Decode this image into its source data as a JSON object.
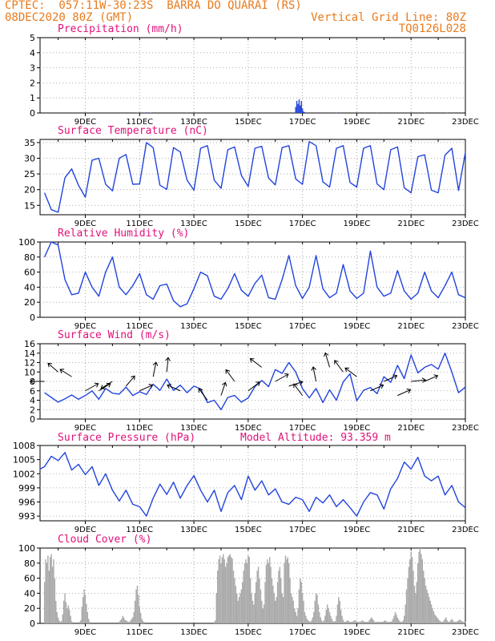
{
  "header": {
    "line1": "CPTEC:  057:11W-30:23S  BARRA DO QUARAI (RS)",
    "line2_left": "08DEC2020 80Z (GMT)",
    "line2_right": "Vertical Grid Line: 80Z",
    "line3_right": "TQ0126L028"
  },
  "x_ticks": [
    "9DEC",
    "11DEC",
    "13DEC",
    "15DEC",
    "17DEC",
    "19DEC",
    "21DEC",
    "23DEC"
  ],
  "x_tick_hours": [
    40,
    88,
    136,
    184,
    232,
    280,
    328,
    376
  ],
  "colors": {
    "line": "#2244dd",
    "wind": "#000000",
    "cloud": "#aaaaaa",
    "grid": "#999999",
    "title": "#e0127a",
    "header": "#e87b1e"
  },
  "chart_data": [
    {
      "type": "bar",
      "id": "precip",
      "title": "Precipitation (mm/h)",
      "ylim": [
        0,
        5
      ],
      "yticks": [
        0,
        1,
        2,
        3,
        4,
        5
      ],
      "x_hours": [
        86,
        92,
        98,
        130,
        226,
        227,
        228,
        229,
        230,
        231,
        232,
        233,
        234,
        262,
        298,
        340,
        360
      ],
      "values": [
        0.02,
        0.03,
        0.02,
        0.03,
        0.4,
        0.8,
        0.6,
        0.9,
        0.5,
        0.8,
        0.3,
        0.1,
        0.05,
        0.02,
        0.03,
        0.02,
        0.03
      ]
    },
    {
      "type": "line",
      "id": "temp",
      "title": "Surface Temperature (nC)",
      "ylim": [
        12,
        36
      ],
      "yticks": [
        15,
        20,
        25,
        30,
        35
      ],
      "x_hours": [
        4,
        10,
        16,
        22,
        28,
        34,
        40,
        46,
        52,
        58,
        64,
        70,
        76,
        82,
        88,
        94,
        100,
        106,
        112,
        118,
        124,
        130,
        136,
        142,
        148,
        154,
        160,
        166,
        172,
        178,
        184,
        190,
        196,
        202,
        208,
        214,
        220,
        226,
        232,
        238,
        244,
        250,
        256,
        262,
        268,
        274,
        280,
        286,
        292,
        298,
        304,
        310,
        316,
        322,
        328,
        334,
        340,
        346,
        352,
        358,
        364,
        370,
        376
      ],
      "values": [
        19.0,
        13.6,
        12.8,
        23.8,
        26.6,
        21.4,
        17.6,
        29.4,
        30.0,
        21.7,
        19.6,
        30.0,
        31.2,
        21.7,
        21.8,
        35.0,
        33.4,
        21.4,
        20.1,
        33.4,
        32.0,
        23.0,
        19.8,
        33.2,
        34.0,
        23.0,
        20.4,
        32.7,
        33.6,
        24.5,
        21.0,
        33.2,
        33.8,
        23.7,
        21.5,
        33.4,
        34.0,
        23.4,
        21.7,
        35.3,
        34.0,
        22.5,
        20.8,
        33.2,
        34.0,
        22.3,
        20.8,
        33.2,
        34.0,
        21.8,
        20.0,
        32.7,
        33.6,
        20.6,
        19.0,
        30.5,
        31.1,
        19.8,
        19.0,
        31.0,
        33.2,
        19.7,
        31.8
      ]
    },
    {
      "type": "line",
      "id": "rh",
      "title": "Relative Humidity (%)",
      "ylim": [
        0,
        100
      ],
      "yticks": [
        0,
        20,
        40,
        60,
        80,
        100
      ],
      "x_hours": [
        4,
        10,
        16,
        22,
        28,
        34,
        40,
        46,
        52,
        58,
        64,
        70,
        76,
        82,
        88,
        94,
        100,
        106,
        112,
        118,
        124,
        130,
        136,
        142,
        148,
        154,
        160,
        166,
        172,
        178,
        184,
        190,
        196,
        202,
        208,
        214,
        220,
        226,
        232,
        238,
        244,
        250,
        256,
        262,
        268,
        274,
        280,
        286,
        292,
        298,
        304,
        310,
        316,
        322,
        328,
        334,
        340,
        346,
        352,
        358,
        364,
        370,
        376
      ],
      "values": [
        80,
        100,
        96,
        50,
        30,
        32,
        60,
        40,
        28,
        60,
        80,
        40,
        30,
        42,
        58,
        30,
        24,
        42,
        44,
        22,
        14,
        18,
        38,
        60,
        55,
        28,
        24,
        38,
        58,
        36,
        28,
        45,
        56,
        26,
        24,
        50,
        82,
        42,
        25,
        40,
        82,
        38,
        26,
        32,
        70,
        35,
        25,
        32,
        88,
        40,
        28,
        32,
        62,
        35,
        24,
        32,
        60,
        35,
        26,
        42,
        60,
        30,
        26
      ]
    },
    {
      "type": "line",
      "id": "wind",
      "title": "Surface Wind (m/s)",
      "ylim": [
        0,
        16
      ],
      "yticks": [
        0,
        2,
        4,
        6,
        8,
        10,
        12,
        14,
        16
      ],
      "x_hours": [
        4,
        10,
        16,
        22,
        28,
        34,
        40,
        46,
        52,
        58,
        64,
        70,
        76,
        82,
        88,
        94,
        100,
        106,
        112,
        118,
        124,
        130,
        136,
        142,
        148,
        154,
        160,
        166,
        172,
        178,
        184,
        190,
        196,
        202,
        208,
        214,
        220,
        226,
        232,
        238,
        244,
        250,
        256,
        262,
        268,
        274,
        280,
        286,
        292,
        298,
        304,
        310,
        316,
        322,
        328,
        334,
        340,
        346,
        352,
        358,
        364,
        370,
        376
      ],
      "values": [
        5.6,
        4.6,
        3.6,
        4.3,
        5.1,
        4.2,
        5.0,
        6.0,
        4.2,
        6.5,
        5.5,
        5.3,
        6.8,
        5.0,
        5.8,
        5.2,
        7.4,
        6.1,
        8.5,
        6.1,
        7.2,
        5.6,
        7.0,
        6.4,
        3.5,
        4.0,
        2.0,
        4.6,
        5.0,
        3.6,
        4.5,
        6.9,
        8.2,
        6.9,
        10.5,
        9.7,
        12.0,
        10.0,
        6.5,
        4.5,
        6.5,
        3.5,
        6.2,
        4.0,
        7.9,
        9.6,
        3.9,
        6.1,
        6.7,
        5.4,
        9.0,
        7.8,
        11.4,
        8.6,
        13.6,
        9.8,
        11.0,
        11.6,
        10.6,
        14.0,
        10.0,
        5.6,
        6.8
      ],
      "arrows": [
        {
          "h": 4,
          "speed": 8,
          "u": -1.0,
          "v": 0.0
        },
        {
          "h": 16,
          "speed": 10,
          "u": -0.7,
          "v": 0.6
        },
        {
          "h": 28,
          "speed": 9,
          "u": -0.8,
          "v": 0.5
        },
        {
          "h": 40,
          "speed": 6,
          "u": 0.9,
          "v": 0.5
        },
        {
          "h": 52,
          "speed": 6,
          "u": 0.8,
          "v": 0.5
        },
        {
          "h": 64,
          "speed": 8,
          "u": -0.8,
          "v": -0.5
        },
        {
          "h": 76,
          "speed": 7,
          "u": 0.6,
          "v": 0.7
        },
        {
          "h": 88,
          "speed": 6,
          "u": 0.9,
          "v": 0.4
        },
        {
          "h": 100,
          "speed": 9,
          "u": 0.2,
          "v": 1.0
        },
        {
          "h": 112,
          "speed": 10,
          "u": 0.1,
          "v": 1.0
        },
        {
          "h": 124,
          "speed": 6,
          "u": -0.9,
          "v": 0.4
        },
        {
          "h": 148,
          "speed": 4,
          "u": -0.6,
          "v": 0.8
        },
        {
          "h": 160,
          "speed": 5,
          "u": 0.3,
          "v": 0.9
        },
        {
          "h": 172,
          "speed": 8,
          "u": -0.6,
          "v": 0.8
        },
        {
          "h": 184,
          "speed": 6,
          "u": 0.8,
          "v": 0.6
        },
        {
          "h": 196,
          "speed": 11,
          "u": -0.8,
          "v": 0.6
        },
        {
          "h": 208,
          "speed": 8,
          "u": 0.9,
          "v": 0.5
        },
        {
          "h": 220,
          "speed": 7,
          "u": 0.95,
          "v": 0.3
        },
        {
          "h": 232,
          "speed": 5,
          "u": -0.6,
          "v": 0.8
        },
        {
          "h": 244,
          "speed": 8,
          "u": -0.2,
          "v": 1.0
        },
        {
          "h": 256,
          "speed": 11,
          "u": -0.3,
          "v": 1.0
        },
        {
          "h": 268,
          "speed": 10,
          "u": -0.6,
          "v": 0.8
        },
        {
          "h": 280,
          "speed": 9,
          "u": -0.8,
          "v": 0.6
        },
        {
          "h": 292,
          "speed": 6,
          "u": 0.9,
          "v": 0.4
        },
        {
          "h": 304,
          "speed": 8,
          "u": 0.9,
          "v": 0.4
        },
        {
          "h": 316,
          "speed": 5,
          "u": 0.9,
          "v": 0.4
        },
        {
          "h": 328,
          "speed": 8,
          "u": 1.0,
          "v": 0.1
        },
        {
          "h": 340,
          "speed": 8,
          "u": 0.9,
          "v": 0.4
        }
      ]
    },
    {
      "type": "line",
      "id": "press",
      "title": "Surface Pressure (hPa)",
      "annotation": "Model Altitude: 93.359 m",
      "ylim": [
        992,
        1008
      ],
      "yticks": [
        993,
        996,
        999,
        1002,
        1005,
        1008
      ],
      "x_hours": [
        0,
        4,
        10,
        16,
        22,
        28,
        34,
        40,
        46,
        52,
        58,
        64,
        70,
        76,
        82,
        88,
        94,
        100,
        106,
        112,
        118,
        124,
        130,
        136,
        142,
        148,
        154,
        160,
        166,
        172,
        178,
        184,
        190,
        196,
        202,
        208,
        214,
        220,
        226,
        232,
        238,
        244,
        250,
        256,
        262,
        268,
        274,
        280,
        286,
        292,
        298,
        304,
        310,
        316,
        322,
        328,
        334,
        340,
        346,
        352,
        358,
        364,
        370,
        376
      ],
      "values": [
        1003.0,
        1003.5,
        1005.7,
        1004.8,
        1006.5,
        1002.8,
        1004.0,
        1001.8,
        1003.5,
        999.5,
        1002.0,
        998.5,
        996.2,
        998.5,
        995.5,
        995.0,
        993.0,
        996.8,
        999.8,
        997.6,
        1000.2,
        996.8,
        999.5,
        1001.6,
        998.5,
        996.0,
        998.5,
        994.0,
        998.0,
        999.5,
        996.5,
        1001.5,
        998.5,
        1000.5,
        997.5,
        998.8,
        996.0,
        995.5,
        997.0,
        996.5,
        994.0,
        997.0,
        995.8,
        997.5,
        995.0,
        996.5,
        994.8,
        993.0,
        996.0,
        998.0,
        997.5,
        994.5,
        998.8,
        1001.0,
        1004.5,
        1003.0,
        1005.5,
        1001.5,
        1000.5,
        1001.5,
        997.5,
        999.5,
        996.0,
        994.8
      ]
    },
    {
      "type": "bar",
      "id": "cloud",
      "title": "Cloud Cover (%)",
      "ylim": [
        0,
        100
      ],
      "yticks": [
        0,
        20,
        40,
        60,
        80,
        100
      ],
      "x_hours": [
        4,
        5,
        6,
        7,
        8,
        9,
        10,
        11,
        12,
        13,
        14,
        15,
        16,
        17,
        18,
        19,
        20,
        21,
        22,
        23,
        24,
        25,
        26,
        27,
        28,
        35,
        36,
        37,
        38,
        39,
        40,
        41,
        42,
        43,
        44,
        70,
        71,
        72,
        73,
        74,
        75,
        76,
        77,
        78,
        79,
        80,
        81,
        82,
        83,
        84,
        85,
        86,
        87,
        88,
        89,
        90,
        91,
        92,
        154,
        155,
        156,
        157,
        158,
        159,
        160,
        161,
        162,
        163,
        164,
        165,
        166,
        167,
        168,
        169,
        170,
        171,
        172,
        173,
        174,
        175,
        176,
        177,
        178,
        179,
        180,
        181,
        182,
        183,
        184,
        185,
        186,
        187,
        188,
        189,
        190,
        191,
        192,
        193,
        194,
        195,
        196,
        197,
        198,
        199,
        200,
        201,
        202,
        203,
        204,
        205,
        206,
        207,
        208,
        209,
        210,
        211,
        212,
        213,
        214,
        215,
        216,
        217,
        218,
        219,
        220,
        221,
        222,
        223,
        224,
        225,
        226,
        227,
        228,
        229,
        230,
        231,
        232,
        233,
        234,
        235,
        236,
        237,
        238,
        239,
        240,
        241,
        242,
        243,
        244,
        245,
        246,
        247,
        248,
        249,
        250,
        251,
        252,
        253,
        254,
        255,
        256,
        257,
        258,
        259,
        260,
        261,
        262,
        263,
        264,
        265,
        266,
        267,
        268,
        269,
        270,
        271,
        272,
        273,
        274,
        275,
        276,
        277,
        278,
        279,
        280,
        281,
        282,
        283,
        284,
        285,
        286,
        287,
        288,
        289,
        290,
        291,
        292,
        293,
        294,
        295,
        296,
        297,
        298,
        299,
        300,
        301,
        302,
        303,
        304,
        305,
        306,
        307,
        308,
        309,
        310,
        311,
        312,
        313,
        314,
        315,
        316,
        317,
        318,
        319,
        320,
        321,
        322,
        323,
        324,
        325,
        326,
        327,
        328,
        329,
        330,
        331,
        332,
        333,
        334,
        335,
        336,
        337,
        338,
        339,
        340,
        341,
        342,
        343,
        344,
        345,
        346,
        347,
        348,
        349,
        350,
        351,
        352,
        353,
        354,
        355,
        356,
        357,
        358,
        359,
        360,
        361,
        362,
        363,
        364,
        365,
        366,
        367,
        368,
        369,
        370,
        371,
        372,
        373,
        374,
        375,
        376
      ],
      "values": [
        55,
        85,
        80,
        90,
        70,
        88,
        92,
        75,
        85,
        60,
        30,
        15,
        8,
        4,
        2,
        3,
        12,
        30,
        40,
        28,
        20,
        24,
        18,
        10,
        3,
        2,
        4,
        22,
        35,
        45,
        38,
        26,
        15,
        6,
        2,
        2,
        4,
        6,
        10,
        8,
        5,
        4,
        3,
        2,
        2,
        4,
        6,
        8,
        15,
        30,
        45,
        50,
        38,
        22,
        14,
        6,
        3,
        2,
        2,
        4,
        40,
        70,
        85,
        90,
        80,
        88,
        92,
        85,
        75,
        80,
        88,
        90,
        92,
        88,
        86,
        70,
        60,
        50,
        40,
        30,
        35,
        40,
        45,
        55,
        70,
        80,
        85,
        80,
        90,
        88,
        60,
        40,
        30,
        25,
        40,
        55,
        70,
        75,
        60,
        45,
        30,
        20,
        25,
        55,
        78,
        85,
        80,
        88,
        75,
        60,
        50,
        40,
        30,
        35,
        55,
        70,
        75,
        60,
        40,
        35,
        80,
        90,
        85,
        88,
        80,
        60,
        40,
        35,
        30,
        20,
        15,
        10,
        20,
        45,
        60,
        55,
        40,
        30,
        15,
        10,
        6,
        4,
        3,
        2,
        4,
        8,
        15,
        30,
        40,
        38,
        25,
        15,
        8,
        4,
        2,
        4,
        10,
        18,
        25,
        20,
        15,
        10,
        6,
        3,
        2,
        3,
        10,
        25,
        35,
        30,
        18,
        10,
        5,
        2,
        2,
        3,
        4,
        3,
        2,
        2,
        2,
        3,
        4,
        4,
        2,
        2,
        2,
        2,
        3,
        4,
        3,
        2,
        2,
        2,
        2,
        4,
        6,
        8,
        6,
        4,
        2,
        2,
        2,
        2,
        2,
        2,
        2,
        2,
        3,
        4,
        3,
        2,
        2,
        2,
        2,
        3,
        6,
        10,
        15,
        12,
        8,
        5,
        3,
        2,
        2,
        4,
        10,
        25,
        45,
        60,
        75,
        85,
        95,
        88,
        70,
        50,
        40,
        55,
        80,
        95,
        100,
        92,
        85,
        70,
        60,
        50,
        45,
        40,
        35,
        30,
        25,
        20,
        16,
        12,
        10,
        8,
        6,
        4,
        3,
        2,
        2,
        4,
        6,
        8,
        4,
        2,
        2,
        4,
        6,
        4,
        2,
        2,
        2,
        3,
        4,
        5,
        4,
        3,
        2,
        2,
        2
      ]
    }
  ]
}
